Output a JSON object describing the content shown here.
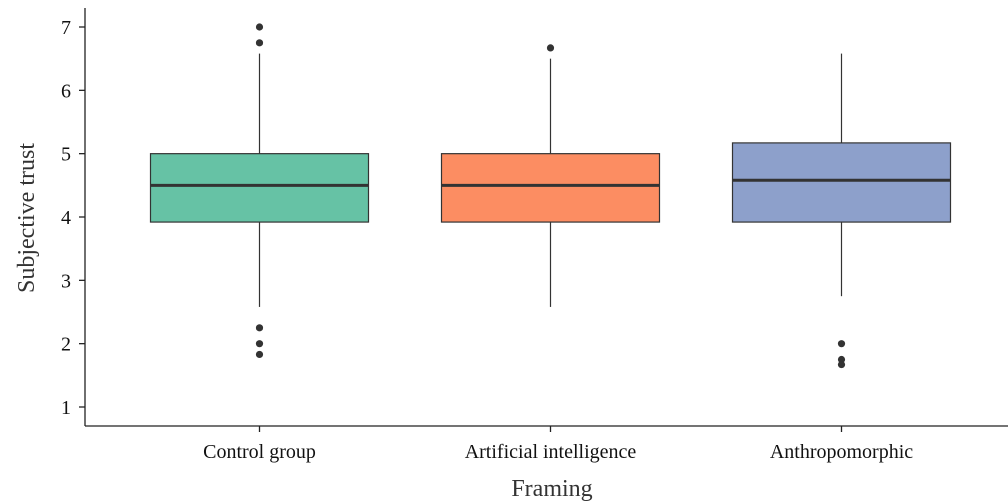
{
  "chart_data": {
    "type": "box",
    "xlabel": "Framing",
    "ylabel": "Subjective trust",
    "ylim": [
      0.7,
      7.3
    ],
    "yticks": [
      1,
      2,
      3,
      4,
      5,
      6,
      7
    ],
    "grid": false,
    "legend": "none",
    "categories": [
      "Control group",
      "Artificial intelligence",
      "Anthropomorphic"
    ],
    "boxes": [
      {
        "category": "Control group",
        "whisker_low": 2.58,
        "q1": 3.92,
        "median": 4.5,
        "q3": 5.0,
        "whisker_high": 6.58,
        "outliers": [
          7.0,
          6.75,
          2.25,
          2.0,
          1.83
        ],
        "color": "#66c2a5"
      },
      {
        "category": "Artificial intelligence",
        "whisker_low": 2.58,
        "q1": 3.92,
        "median": 4.5,
        "q3": 5.0,
        "whisker_high": 6.5,
        "outliers": [
          6.67
        ],
        "color": "#fc8d62"
      },
      {
        "category": "Anthropomorphic",
        "whisker_low": 2.75,
        "q1": 3.92,
        "median": 4.58,
        "q3": 5.17,
        "whisker_high": 6.58,
        "outliers": [
          2.0,
          1.75,
          1.67
        ],
        "color": "#8da0cb"
      }
    ]
  }
}
